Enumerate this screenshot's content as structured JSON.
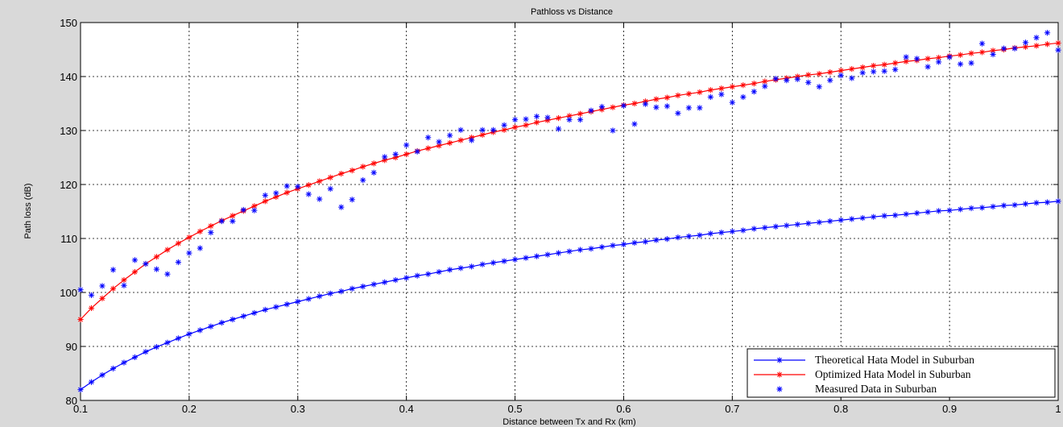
{
  "chart_data": {
    "type": "line",
    "title": "Pathloss vs Distance",
    "xlabel": "Distance between Tx and Rx (km)",
    "ylabel": "Path loss (dB)",
    "xlim": [
      0.1,
      1
    ],
    "ylim": [
      80,
      150
    ],
    "xticks": [
      "0.1",
      "0.2",
      "0.3",
      "0.4",
      "0.5",
      "0.6",
      "0.7",
      "0.8",
      "0.9",
      "1"
    ],
    "yticks": [
      "80",
      "90",
      "100",
      "110",
      "120",
      "130",
      "140",
      "150"
    ],
    "grid": true,
    "legend_position": "bottom-right",
    "x": [
      0.1,
      0.11,
      0.12,
      0.13,
      0.14,
      0.15,
      0.16,
      0.17,
      0.18,
      0.19,
      0.2,
      0.21,
      0.22,
      0.23,
      0.24,
      0.25,
      0.26,
      0.27,
      0.28,
      0.29,
      0.3,
      0.31,
      0.32,
      0.33,
      0.34,
      0.35,
      0.36,
      0.37,
      0.38,
      0.39,
      0.4,
      0.41,
      0.42,
      0.43,
      0.44,
      0.45,
      0.46,
      0.47,
      0.48,
      0.49,
      0.5,
      0.51,
      0.52,
      0.53,
      0.54,
      0.55,
      0.56,
      0.57,
      0.58,
      0.59,
      0.6,
      0.61,
      0.62,
      0.63,
      0.64,
      0.65,
      0.66,
      0.67,
      0.68,
      0.69,
      0.7,
      0.71,
      0.72,
      0.73,
      0.74,
      0.75,
      0.76,
      0.77,
      0.78,
      0.79,
      0.8,
      0.81,
      0.82,
      0.83,
      0.84,
      0.85,
      0.86,
      0.87,
      0.88,
      0.89,
      0.9,
      0.91,
      0.92,
      0.93,
      0.94,
      0.95,
      0.96,
      0.97,
      0.98,
      0.99,
      1.0
    ],
    "series": [
      {
        "name": "Theoretical Hata Model in Suburban",
        "color": "#0000ff",
        "style": "line-star",
        "values": [
          82.0,
          83.4,
          84.7,
          85.9,
          87.0,
          88.0,
          89.0,
          89.9,
          90.7,
          91.5,
          92.3,
          93.0,
          93.7,
          94.4,
          95.0,
          95.6,
          96.2,
          96.8,
          97.3,
          97.8,
          98.3,
          98.8,
          99.3,
          99.8,
          100.2,
          100.7,
          101.1,
          101.5,
          101.9,
          102.3,
          102.7,
          103.1,
          103.4,
          103.8,
          104.2,
          104.5,
          104.8,
          105.2,
          105.5,
          105.8,
          106.1,
          106.4,
          106.7,
          107.0,
          107.3,
          107.6,
          107.9,
          108.1,
          108.4,
          108.7,
          108.9,
          109.2,
          109.4,
          109.7,
          109.9,
          110.2,
          110.4,
          110.6,
          110.9,
          111.1,
          111.3,
          111.5,
          111.8,
          112.0,
          112.2,
          112.4,
          112.6,
          112.8,
          113.0,
          113.2,
          113.4,
          113.6,
          113.8,
          114.0,
          114.2,
          114.3,
          114.5,
          114.7,
          114.9,
          115.1,
          115.2,
          115.4,
          115.6,
          115.7,
          115.9,
          116.1,
          116.2,
          116.4,
          116.6,
          116.7,
          116.9
        ]
      },
      {
        "name": "Optimized Hata Model  in Suburban",
        "color": "#ff0000",
        "style": "line-star",
        "values": [
          95.0,
          97.1,
          98.9,
          100.7,
          102.3,
          103.8,
          105.3,
          106.6,
          107.9,
          109.1,
          110.2,
          111.3,
          112.3,
          113.3,
          114.2,
          115.1,
          116.0,
          116.9,
          117.7,
          118.5,
          119.2,
          119.9,
          120.6,
          121.3,
          122.0,
          122.6,
          123.3,
          123.9,
          124.5,
          125.0,
          125.6,
          126.2,
          126.7,
          127.2,
          127.7,
          128.2,
          128.7,
          129.2,
          129.7,
          130.1,
          130.6,
          131.0,
          131.5,
          131.9,
          132.3,
          132.7,
          133.1,
          133.5,
          133.9,
          134.3,
          134.7,
          135.0,
          135.4,
          135.8,
          136.1,
          136.5,
          136.8,
          137.1,
          137.5,
          137.8,
          138.1,
          138.4,
          138.7,
          139.1,
          139.4,
          139.7,
          140.0,
          140.3,
          140.5,
          140.8,
          141.1,
          141.4,
          141.7,
          142.0,
          142.2,
          142.5,
          142.8,
          143.0,
          143.3,
          143.5,
          143.8,
          144.0,
          144.3,
          144.5,
          144.8,
          145.0,
          145.3,
          145.5,
          145.7,
          146.0,
          146.2
        ]
      },
      {
        "name": "Measured Data in Suburban",
        "color": "#0000ff",
        "style": "star",
        "values": [
          100.5,
          99.5,
          101.2,
          104.2,
          101.3,
          106.0,
          105.3,
          104.3,
          103.4,
          105.6,
          107.3,
          108.2,
          111.1,
          113.2,
          113.2,
          115.3,
          115.2,
          118.0,
          118.4,
          119.7,
          119.6,
          118.2,
          117.3,
          119.2,
          115.8,
          117.2,
          120.8,
          122.2,
          125.1,
          125.6,
          127.3,
          126.1,
          128.7,
          127.9,
          129.1,
          130.1,
          128.2,
          130.1,
          130.1,
          131.0,
          132.0,
          132.1,
          132.6,
          132.4,
          130.3,
          132.0,
          132.0,
          133.7,
          134.4,
          130.0,
          134.6,
          131.2,
          134.9,
          134.3,
          134.5,
          133.2,
          134.2,
          134.2,
          136.2,
          136.7,
          135.2,
          136.2,
          137.2,
          138.2,
          139.6,
          139.3,
          139.5,
          138.9,
          138.1,
          139.3,
          140.2,
          139.7,
          140.7,
          140.9,
          141.0,
          141.3,
          143.6,
          143.3,
          141.8,
          142.7,
          143.6,
          142.3,
          142.5,
          146.1,
          144.1,
          145.2,
          145.2,
          146.3,
          147.2,
          148.1,
          144.9
        ]
      }
    ]
  }
}
